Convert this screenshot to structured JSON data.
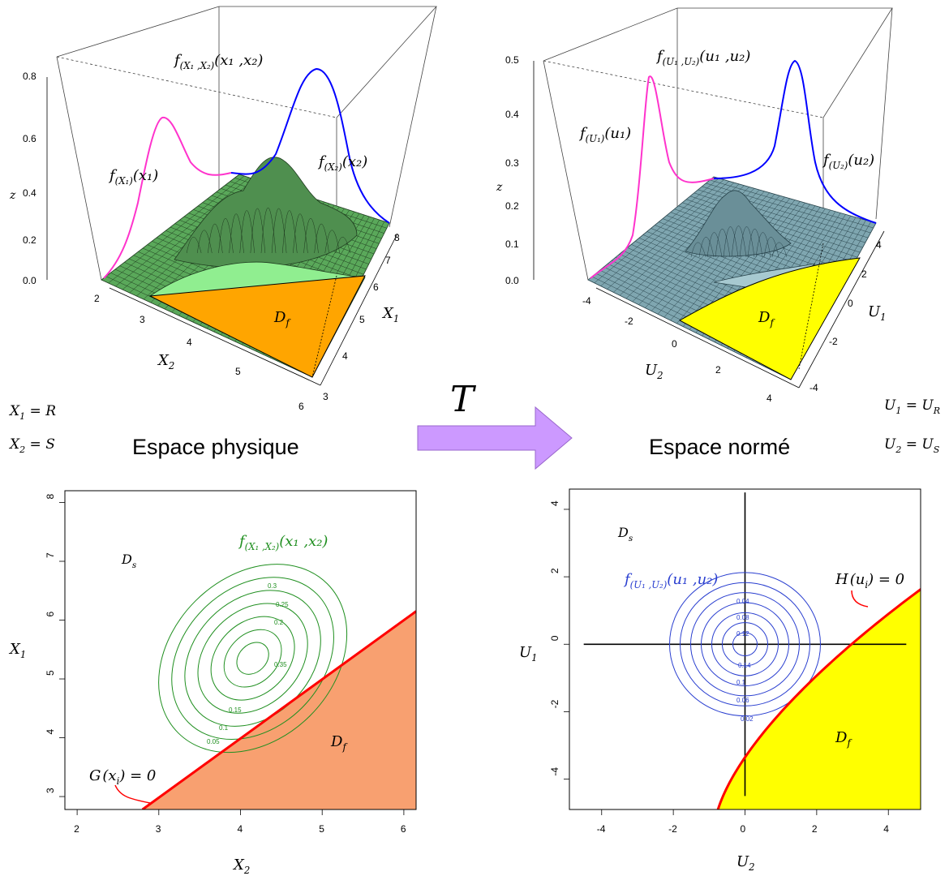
{
  "arrow_label": "T",
  "panel_physique_3d": {
    "title": "Espace physique",
    "density_label": "f(X1,X2)(x1,x2)",
    "marginal_x1_label": "f(X1)(x1)",
    "marginal_x2_label": "f(X2)(x2)",
    "z_axis_label": "z",
    "z_ticks": [
      "0.0",
      "0.2",
      "0.4",
      "0.6",
      "0.8"
    ],
    "x2_axis_label": "X2",
    "x2_ticks": [
      "2",
      "3",
      "4",
      "5",
      "6"
    ],
    "x1_axis_label": "X1",
    "x1_ticks": [
      "3",
      "4",
      "5",
      "6",
      "7",
      "8"
    ],
    "failure_domain_label": "Df",
    "surface_color": "#5aa85a",
    "failure_color": "#ffa500",
    "marginal_x1_color": "#ff33cc",
    "marginal_x2_color": "#0000ff"
  },
  "panel_norme_3d": {
    "title": "Espace normé",
    "density_label": "f(U1,U2)(u1,u2)",
    "marginal_u1_label": "f(U1)(u1)",
    "marginal_u2_label": "f(U2)(u2)",
    "z_axis_label": "z",
    "z_ticks": [
      "0.0",
      "0.1",
      "0.2",
      "0.3",
      "0.4",
      "0.5"
    ],
    "u2_axis_label": "U2",
    "u2_ticks": [
      "-4",
      "-2",
      "0",
      "2",
      "4"
    ],
    "u1_axis_label": "U1",
    "u1_ticks": [
      "4",
      "2",
      "0",
      "-2",
      "-4"
    ],
    "failure_domain_label": "Df",
    "surface_color": "#7fa6b0",
    "failure_color": "#ffff00"
  },
  "definitions_left": [
    "X1 = R",
    "X2 = S"
  ],
  "definitions_right": [
    "U1 = UR",
    "U2 = US"
  ],
  "panel_physique_2d": {
    "xlabel": "X2",
    "ylabel": "X1",
    "x_ticks": [
      "2",
      "3",
      "4",
      "5",
      "6"
    ],
    "y_ticks": [
      "3",
      "4",
      "5",
      "6",
      "7",
      "8"
    ],
    "safe_domain_label": "Ds",
    "failure_domain_label": "Df",
    "limit_state_label": "G(xi) = 0",
    "density_label": "f(X1,X2)(x1,x2)",
    "contour_levels": [
      "0.05",
      "0.1",
      "0.15",
      "0.2",
      "0.25",
      "0.3",
      "0.35"
    ],
    "contour_color": "#1f8f1f",
    "failure_color": "#f8a070"
  },
  "panel_norme_2d": {
    "xlabel": "U2",
    "ylabel": "U1",
    "x_ticks": [
      "-4",
      "-2",
      "0",
      "2",
      "4"
    ],
    "y_ticks": [
      "-4",
      "-2",
      "0",
      "2",
      "4"
    ],
    "safe_domain_label": "Ds",
    "failure_domain_label": "Df",
    "limit_state_label": "H(ui) = 0",
    "density_label": "f(U1,U2)(u1,u2)",
    "contour_levels": [
      "0.02",
      "0.04",
      "0.06",
      "0.08",
      "0.1",
      "0.12",
      "0.14"
    ],
    "contour_color": "#2a3fd0",
    "failure_color": "#ffff00"
  }
}
